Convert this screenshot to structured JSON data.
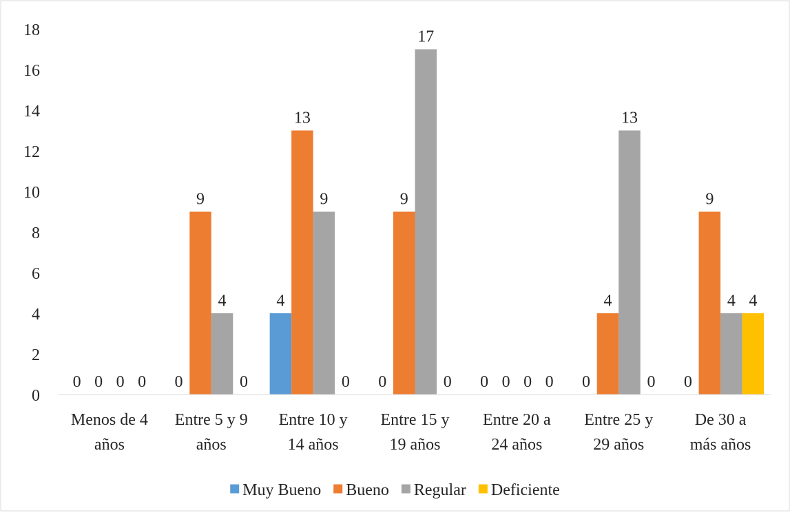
{
  "chart_data": {
    "type": "bar",
    "categories": [
      [
        "Menos de 4",
        "años"
      ],
      [
        "Entre 5 y 9",
        "años"
      ],
      [
        "Entre 10 y",
        "14 años"
      ],
      [
        "Entre 15 y",
        "19 años"
      ],
      [
        "Entre 20 a",
        "24 años"
      ],
      [
        "Entre 25 y",
        "29 años"
      ],
      [
        "De 30 a",
        "más años"
      ]
    ],
    "series": [
      {
        "name": "Muy Bueno",
        "color": "#5B9BD5",
        "values": [
          0,
          0,
          4,
          0,
          0,
          0,
          0
        ]
      },
      {
        "name": "Bueno",
        "color": "#ED7D31",
        "values": [
          0,
          9,
          13,
          9,
          0,
          4,
          9
        ]
      },
      {
        "name": "Regular",
        "color": "#A5A5A5",
        "values": [
          0,
          4,
          9,
          17,
          0,
          13,
          4
        ]
      },
      {
        "name": "Deficiente",
        "color": "#FFC000",
        "values": [
          0,
          0,
          0,
          0,
          0,
          0,
          4
        ]
      }
    ],
    "ylim": [
      0,
      18
    ],
    "yticks": [
      0,
      2,
      4,
      6,
      8,
      10,
      12,
      14,
      16,
      18
    ],
    "data_labels": true,
    "grid": false,
    "legend": "bottom-center",
    "title": "",
    "xlabel": "",
    "ylabel": ""
  }
}
